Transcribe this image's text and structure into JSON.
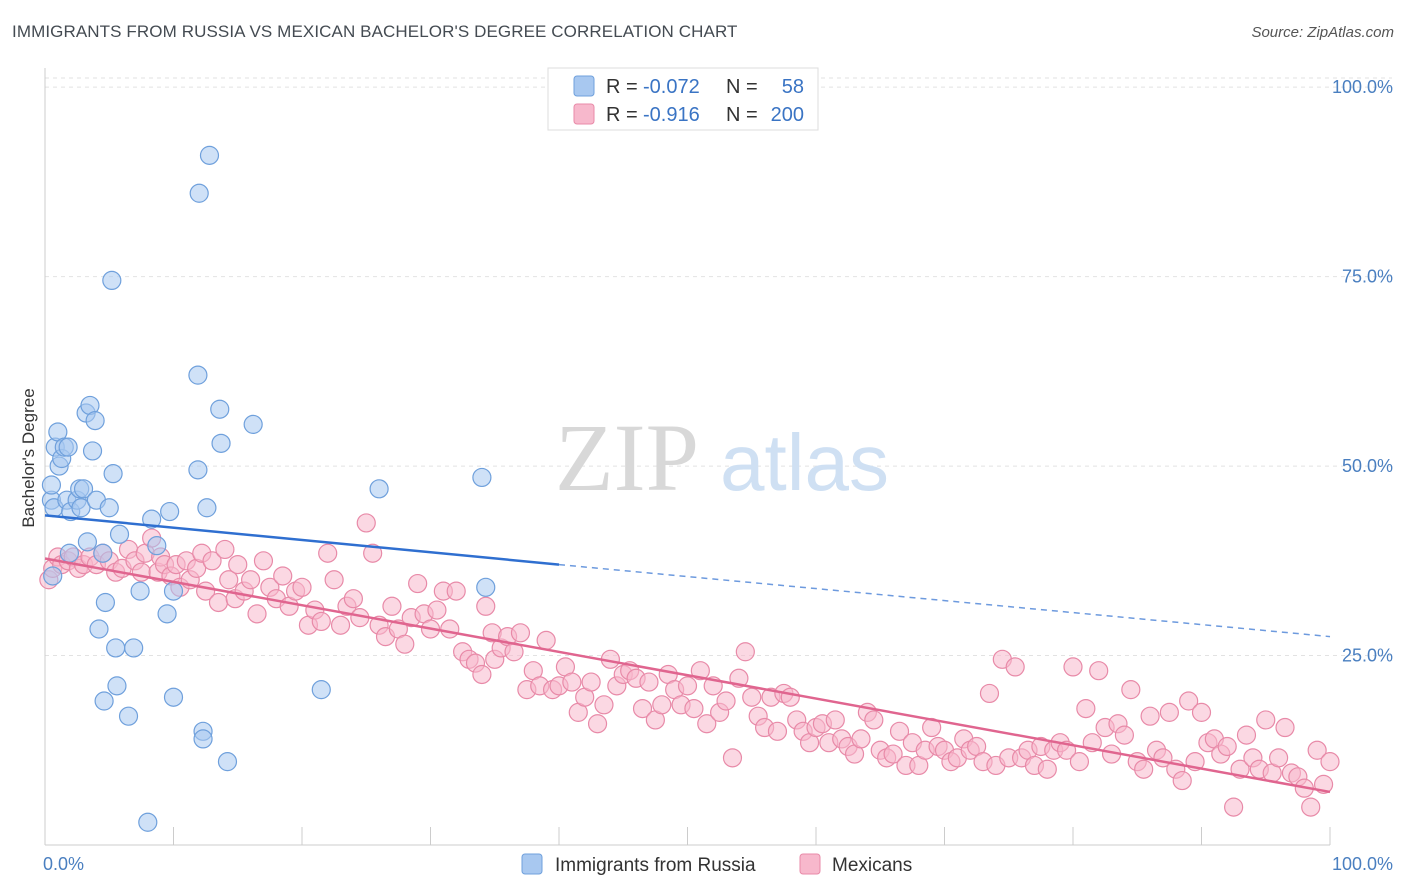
{
  "title": "IMMIGRANTS FROM RUSSIA VS MEXICAN BACHELOR'S DEGREE CORRELATION CHART",
  "source": "Source: ZipAtlas.com",
  "watermark": {
    "zip": "ZIP",
    "atlas": "atlas"
  },
  "legend": {
    "rows": [
      {
        "r_label": "R =",
        "r_value": "-0.072",
        "n_label": "N =",
        "n_value": "58",
        "color": "#a8c8f0",
        "stroke": "#6fa0dc"
      },
      {
        "r_label": "R =",
        "r_value": "-0.916",
        "n_label": "N =",
        "n_value": "200",
        "color": "#f7b8cc",
        "stroke": "#e88aa8"
      }
    ]
  },
  "chart_data": {
    "type": "scatter",
    "title": "IMMIGRANTS FROM RUSSIA VS MEXICAN BACHELOR'S DEGREE CORRELATION CHART",
    "xlabel": "",
    "ylabel": "Bachelor's Degree",
    "xlim": [
      0,
      100
    ],
    "ylim": [
      0,
      102
    ],
    "x_tick_labels": [
      "0.0%",
      "100.0%"
    ],
    "y_tick_labels": [
      "25.0%",
      "50.0%",
      "75.0%",
      "100.0%"
    ],
    "y_ticks": [
      25,
      50,
      75,
      100
    ],
    "grid": true,
    "series": [
      {
        "name": "Immigrants from Russia",
        "color": "#a8c8f0",
        "stroke": "#6fa0dc",
        "trend": {
          "x0": 0,
          "y0": 43.5,
          "x1": 40,
          "y1": 37.0,
          "dash_to": 100,
          "dash_y": 27.5,
          "color": "#2f6fd0"
        },
        "points": [
          [
            0.5,
            45.5
          ],
          [
            0.5,
            47.5
          ],
          [
            0.6,
            35.5
          ],
          [
            0.7,
            44.5
          ],
          [
            0.8,
            52.5
          ],
          [
            1.0,
            54.5
          ],
          [
            1.1,
            50.0
          ],
          [
            1.3,
            51.0
          ],
          [
            1.5,
            52.5
          ],
          [
            1.7,
            45.5
          ],
          [
            1.8,
            52.5
          ],
          [
            1.9,
            38.5
          ],
          [
            2.0,
            44.0
          ],
          [
            2.5,
            45.5
          ],
          [
            2.7,
            47.0
          ],
          [
            2.8,
            44.5
          ],
          [
            3.0,
            47.0
          ],
          [
            3.2,
            57.0
          ],
          [
            3.3,
            40.0
          ],
          [
            3.5,
            58.0
          ],
          [
            3.7,
            52.0
          ],
          [
            3.9,
            56.0
          ],
          [
            4.0,
            45.5
          ],
          [
            4.2,
            28.5
          ],
          [
            4.5,
            38.5
          ],
          [
            4.6,
            19.0
          ],
          [
            4.7,
            32.0
          ],
          [
            5.0,
            44.5
          ],
          [
            5.2,
            74.5
          ],
          [
            5.3,
            49.0
          ],
          [
            5.5,
            26.0
          ],
          [
            5.6,
            21.0
          ],
          [
            5.8,
            41.0
          ],
          [
            6.5,
            17.0
          ],
          [
            6.9,
            26.0
          ],
          [
            7.4,
            33.5
          ],
          [
            8.0,
            3.0
          ],
          [
            8.3,
            43.0
          ],
          [
            8.7,
            39.5
          ],
          [
            9.5,
            30.5
          ],
          [
            9.7,
            44.0
          ],
          [
            10.0,
            33.5
          ],
          [
            10.0,
            19.5
          ],
          [
            12.0,
            86.0
          ],
          [
            11.9,
            49.5
          ],
          [
            11.9,
            62.0
          ],
          [
            12.3,
            15.0
          ],
          [
            12.3,
            14.0
          ],
          [
            12.6,
            44.5
          ],
          [
            12.8,
            91.0
          ],
          [
            13.6,
            57.5
          ],
          [
            13.7,
            53.0
          ],
          [
            14.2,
            11.0
          ],
          [
            16.2,
            55.5
          ],
          [
            21.5,
            20.5
          ],
          [
            26.0,
            47.0
          ],
          [
            34.0,
            48.5
          ],
          [
            34.3,
            34.0
          ]
        ]
      },
      {
        "name": "Mexicans",
        "color": "#f7b8cc",
        "stroke": "#e88aa8",
        "trend": {
          "x0": 0,
          "y0": 37.8,
          "x1": 100,
          "y1": 7.0,
          "color": "#e0658f"
        },
        "points": [
          [
            0.3,
            35.0
          ],
          [
            0.6,
            36.5
          ],
          [
            1.0,
            38.0
          ],
          [
            1.3,
            37.0
          ],
          [
            1.8,
            37.5
          ],
          [
            2.2,
            38.0
          ],
          [
            2.6,
            36.5
          ],
          [
            3.0,
            37.0
          ],
          [
            3.5,
            38.0
          ],
          [
            4.0,
            37.0
          ],
          [
            4.5,
            38.5
          ],
          [
            5.0,
            37.5
          ],
          [
            5.5,
            36.0
          ],
          [
            6.0,
            36.5
          ],
          [
            6.5,
            39.0
          ],
          [
            7.0,
            37.5
          ],
          [
            7.5,
            36.0
          ],
          [
            7.8,
            38.5
          ],
          [
            8.3,
            40.5
          ],
          [
            8.8,
            36.0
          ],
          [
            9.0,
            38.0
          ],
          [
            9.3,
            37.0
          ],
          [
            9.8,
            35.5
          ],
          [
            10.2,
            37.0
          ],
          [
            10.5,
            34.0
          ],
          [
            11.0,
            37.5
          ],
          [
            11.3,
            35.0
          ],
          [
            11.8,
            36.5
          ],
          [
            12.2,
            38.5
          ],
          [
            12.5,
            33.5
          ],
          [
            13.0,
            37.5
          ],
          [
            13.5,
            32.0
          ],
          [
            14.0,
            39.0
          ],
          [
            14.3,
            35.0
          ],
          [
            14.8,
            32.5
          ],
          [
            15.0,
            37.0
          ],
          [
            15.5,
            33.5
          ],
          [
            16.0,
            35.0
          ],
          [
            16.5,
            30.5
          ],
          [
            17.0,
            37.5
          ],
          [
            17.5,
            34.0
          ],
          [
            18.0,
            32.5
          ],
          [
            18.5,
            35.5
          ],
          [
            19.0,
            31.5
          ],
          [
            19.5,
            33.5
          ],
          [
            20.0,
            34.0
          ],
          [
            20.5,
            29.0
          ],
          [
            21.0,
            31.0
          ],
          [
            21.5,
            29.5
          ],
          [
            22.0,
            38.5
          ],
          [
            22.5,
            35.0
          ],
          [
            23.0,
            29.0
          ],
          [
            23.5,
            31.5
          ],
          [
            24.0,
            32.5
          ],
          [
            24.5,
            30.0
          ],
          [
            25.0,
            42.5
          ],
          [
            25.5,
            38.5
          ],
          [
            26.0,
            29.0
          ],
          [
            26.5,
            27.5
          ],
          [
            27.0,
            31.5
          ],
          [
            27.5,
            28.5
          ],
          [
            28.0,
            26.5
          ],
          [
            28.5,
            30.0
          ],
          [
            29.0,
            34.5
          ],
          [
            29.5,
            30.5
          ],
          [
            30.0,
            28.5
          ],
          [
            30.5,
            31.0
          ],
          [
            31.0,
            33.5
          ],
          [
            31.5,
            28.5
          ],
          [
            32.0,
            33.5
          ],
          [
            32.5,
            25.5
          ],
          [
            33.0,
            24.5
          ],
          [
            33.5,
            24.0
          ],
          [
            34.0,
            22.5
          ],
          [
            34.3,
            31.5
          ],
          [
            34.8,
            28.0
          ],
          [
            35.0,
            24.5
          ],
          [
            35.5,
            26.0
          ],
          [
            36.0,
            27.5
          ],
          [
            36.5,
            25.5
          ],
          [
            37.0,
            28.0
          ],
          [
            37.5,
            20.5
          ],
          [
            38.0,
            23.0
          ],
          [
            38.5,
            21.0
          ],
          [
            39.0,
            27.0
          ],
          [
            39.5,
            20.5
          ],
          [
            40.0,
            21.0
          ],
          [
            40.5,
            23.5
          ],
          [
            41.0,
            21.5
          ],
          [
            41.5,
            17.5
          ],
          [
            42.0,
            19.5
          ],
          [
            42.5,
            21.5
          ],
          [
            43.0,
            16.0
          ],
          [
            43.5,
            18.5
          ],
          [
            44.0,
            24.5
          ],
          [
            44.5,
            21.0
          ],
          [
            45.0,
            22.5
          ],
          [
            45.5,
            23.0
          ],
          [
            46.0,
            22.0
          ],
          [
            46.5,
            18.0
          ],
          [
            47.0,
            21.5
          ],
          [
            47.5,
            16.5
          ],
          [
            48.0,
            18.5
          ],
          [
            48.5,
            22.5
          ],
          [
            49.0,
            20.5
          ],
          [
            49.5,
            18.5
          ],
          [
            50.0,
            21.0
          ],
          [
            50.5,
            18.0
          ],
          [
            51.0,
            23.0
          ],
          [
            51.5,
            16.0
          ],
          [
            52.0,
            21.0
          ],
          [
            52.5,
            17.5
          ],
          [
            53.0,
            19.0
          ],
          [
            53.5,
            11.5
          ],
          [
            54.0,
            22.0
          ],
          [
            54.5,
            25.5
          ],
          [
            55.0,
            19.5
          ],
          [
            55.5,
            17.0
          ],
          [
            56.0,
            15.5
          ],
          [
            56.5,
            19.5
          ],
          [
            57.0,
            15.0
          ],
          [
            57.5,
            20.0
          ],
          [
            58.0,
            19.5
          ],
          [
            58.5,
            16.5
          ],
          [
            59.0,
            15.0
          ],
          [
            59.5,
            13.5
          ],
          [
            60.0,
            15.5
          ],
          [
            60.5,
            16.0
          ],
          [
            61.0,
            13.5
          ],
          [
            61.5,
            16.5
          ],
          [
            62.0,
            14.0
          ],
          [
            62.5,
            13.0
          ],
          [
            63.0,
            12.0
          ],
          [
            63.5,
            14.0
          ],
          [
            64.0,
            17.5
          ],
          [
            64.5,
            16.5
          ],
          [
            65.0,
            12.5
          ],
          [
            65.5,
            11.5
          ],
          [
            66.0,
            12.0
          ],
          [
            66.5,
            15.0
          ],
          [
            67.0,
            10.5
          ],
          [
            67.5,
            13.5
          ],
          [
            68.0,
            10.5
          ],
          [
            68.5,
            12.5
          ],
          [
            69.0,
            15.5
          ],
          [
            69.5,
            13.0
          ],
          [
            70.0,
            12.5
          ],
          [
            70.5,
            11.0
          ],
          [
            71.0,
            11.5
          ],
          [
            71.5,
            14.0
          ],
          [
            72.0,
            12.5
          ],
          [
            72.5,
            13.0
          ],
          [
            73.0,
            11.0
          ],
          [
            73.5,
            20.0
          ],
          [
            74.0,
            10.5
          ],
          [
            74.5,
            24.5
          ],
          [
            75.0,
            11.5
          ],
          [
            75.5,
            23.5
          ],
          [
            76.0,
            11.5
          ],
          [
            76.5,
            12.5
          ],
          [
            77.0,
            10.5
          ],
          [
            77.5,
            13.0
          ],
          [
            78.0,
            10.0
          ],
          [
            78.5,
            12.5
          ],
          [
            79.0,
            13.5
          ],
          [
            79.5,
            12.5
          ],
          [
            80.0,
            23.5
          ],
          [
            80.5,
            11.0
          ],
          [
            81.0,
            18.0
          ],
          [
            81.5,
            13.5
          ],
          [
            82.0,
            23.0
          ],
          [
            82.5,
            15.5
          ],
          [
            83.0,
            12.0
          ],
          [
            83.5,
            16.0
          ],
          [
            84.0,
            14.5
          ],
          [
            84.5,
            20.5
          ],
          [
            85.0,
            11.0
          ],
          [
            85.5,
            10.0
          ],
          [
            86.0,
            17.0
          ],
          [
            86.5,
            12.5
          ],
          [
            87.0,
            11.5
          ],
          [
            87.5,
            17.5
          ],
          [
            88.0,
            10.0
          ],
          [
            88.5,
            8.5
          ],
          [
            89.0,
            19.0
          ],
          [
            89.5,
            11.0
          ],
          [
            90.0,
            17.5
          ],
          [
            90.5,
            13.5
          ],
          [
            91.0,
            14.0
          ],
          [
            91.5,
            12.0
          ],
          [
            92.0,
            13.0
          ],
          [
            92.5,
            5.0
          ],
          [
            93.0,
            10.0
          ],
          [
            93.5,
            14.5
          ],
          [
            94.0,
            11.5
          ],
          [
            94.5,
            10.0
          ],
          [
            95.0,
            16.5
          ],
          [
            95.5,
            9.5
          ],
          [
            96.0,
            11.5
          ],
          [
            96.5,
            15.5
          ],
          [
            97.0,
            9.5
          ],
          [
            97.5,
            9.0
          ],
          [
            98.0,
            7.5
          ],
          [
            98.5,
            5.0
          ],
          [
            99.0,
            12.5
          ],
          [
            99.5,
            8.0
          ],
          [
            100.0,
            11.0
          ]
        ]
      }
    ]
  },
  "bottom_legend": [
    "Immigrants from Russia",
    "Mexicans"
  ]
}
